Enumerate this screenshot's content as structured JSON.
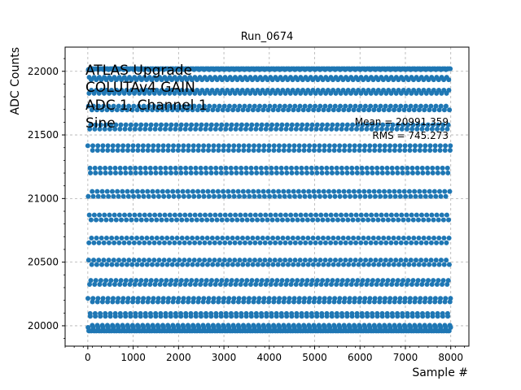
{
  "chart_data": {
    "type": "scatter",
    "title": "Run_0674",
    "xlabel": "Sample #",
    "ylabel": "ADC Counts",
    "xlim": [
      -500,
      8400
    ],
    "ylim": [
      19840,
      22190
    ],
    "xticks": [
      0,
      1000,
      2000,
      3000,
      4000,
      5000,
      6000,
      7000,
      8000
    ],
    "yticks": [
      20000,
      20500,
      21000,
      21500,
      22000
    ],
    "grid": true,
    "grid_style": "dashed",
    "series": [
      {
        "color": "#1f77b4",
        "marker": "circle",
        "n_samples": 8000,
        "waveform": "sine",
        "y_min": 19960,
        "y_max": 22020,
        "period_samples": 3.7
      }
    ],
    "annotations": {
      "info_lines": [
        "ATLAS Upgrade",
        "COLUTAv4 GAIN",
        "ADC 1, Channel 1",
        "Sine"
      ],
      "mean_text": "Mean = 20991.359",
      "rms_text": "RMS = 745.273"
    }
  }
}
